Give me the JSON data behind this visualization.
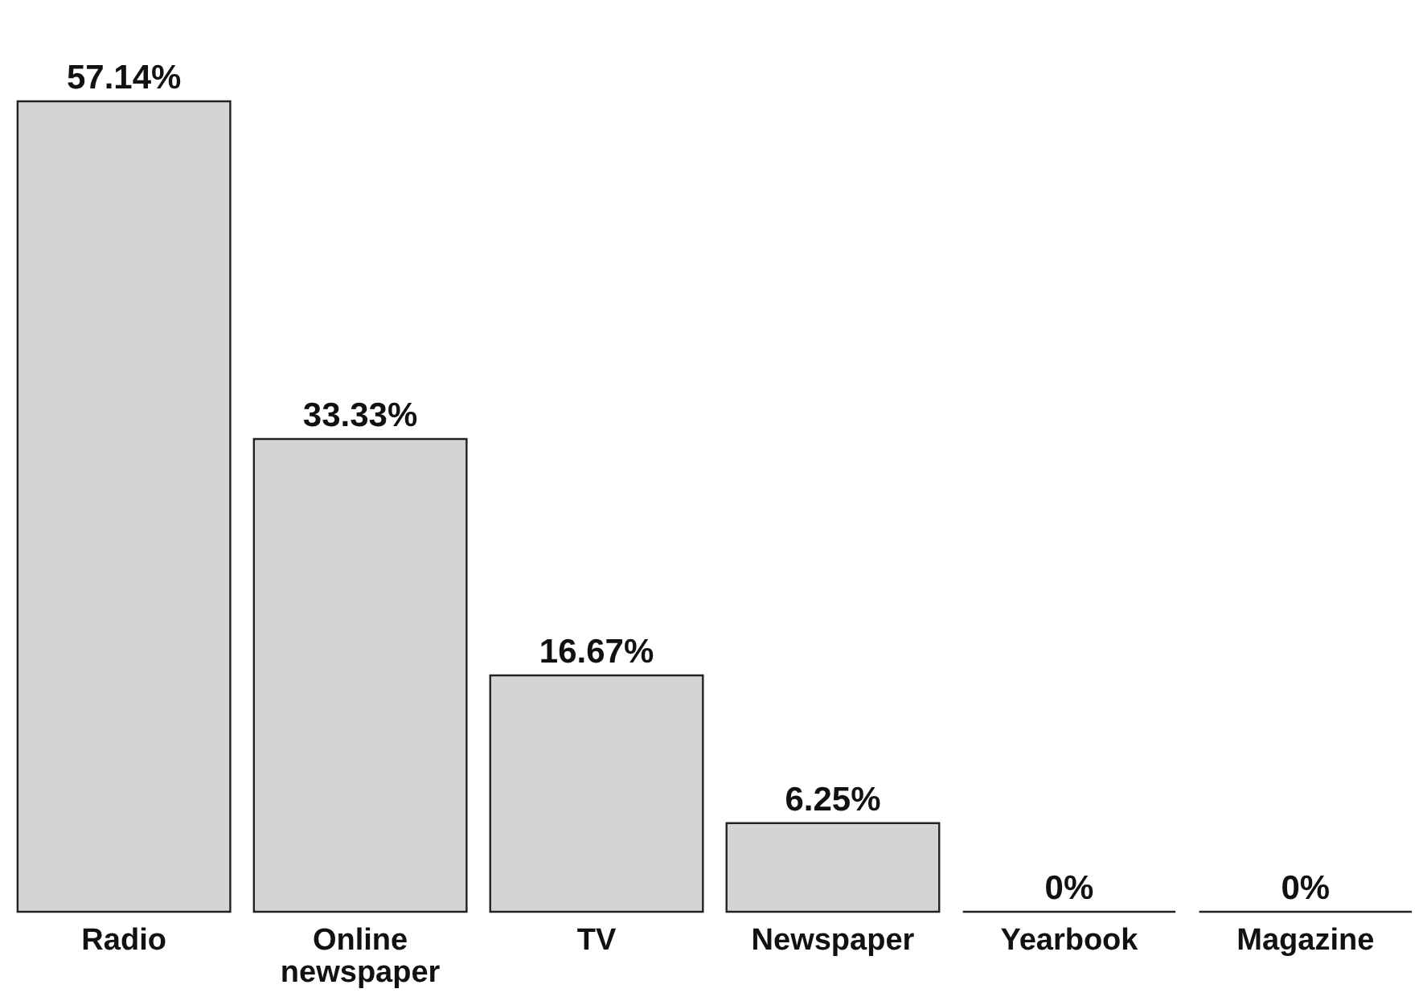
{
  "chart_data": {
    "type": "bar",
    "categories": [
      "Radio",
      "Online newspaper",
      "TV",
      "Newspaper",
      "Yearbook",
      "Magazine"
    ],
    "values": [
      57.14,
      33.33,
      16.67,
      6.25,
      0,
      0
    ],
    "value_labels": [
      "57.14%",
      "33.33%",
      "16.67%",
      "6.25%",
      "0%",
      "0%"
    ],
    "color": "#d4d4d6"
  }
}
